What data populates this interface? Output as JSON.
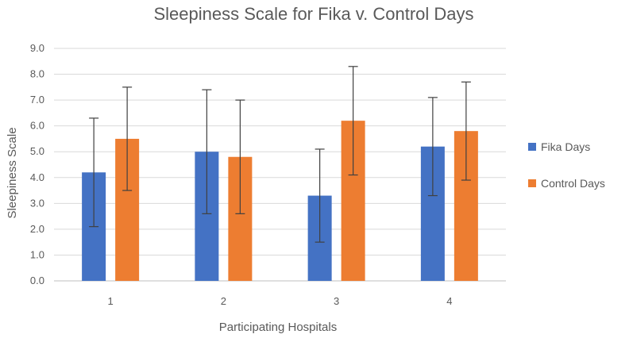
{
  "chart_data": {
    "type": "bar",
    "title": "Sleepiness  Scale for Fika v. Control Days",
    "xlabel": "Participating  Hospitals",
    "ylabel": "Sleepiness Scale",
    "categories": [
      "1",
      "2",
      "3",
      "4"
    ],
    "ylim": [
      0,
      9
    ],
    "yticks": [
      "0.0",
      "1.0",
      "2.0",
      "3.0",
      "4.0",
      "5.0",
      "6.0",
      "7.0",
      "8.0",
      "9.0"
    ],
    "grid": true,
    "legend_position": "right",
    "series": [
      {
        "name": "Fika Days",
        "color": "#4472C4",
        "values": [
          4.2,
          5.0,
          3.3,
          5.2
        ],
        "error_low": [
          2.1,
          2.6,
          1.5,
          3.3
        ],
        "error_high": [
          6.3,
          7.4,
          5.1,
          7.1
        ]
      },
      {
        "name": "Control Days",
        "color": "#ED7D31",
        "values": [
          5.5,
          4.8,
          6.2,
          5.8
        ],
        "error_low": [
          3.5,
          2.6,
          4.1,
          3.9
        ],
        "error_high": [
          7.5,
          7.0,
          8.3,
          7.7
        ]
      }
    ]
  }
}
